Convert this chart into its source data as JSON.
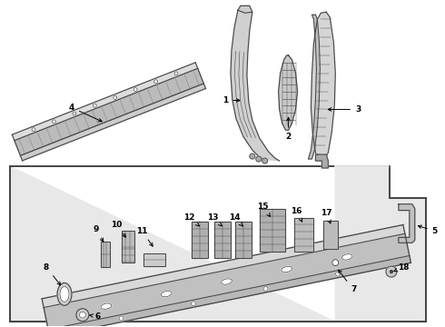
{
  "bg_color": "#ffffff",
  "box_bg": "#e8e8e8",
  "line_color": "#444444",
  "label_fontsize": 6.5,
  "label_color": "#000000"
}
